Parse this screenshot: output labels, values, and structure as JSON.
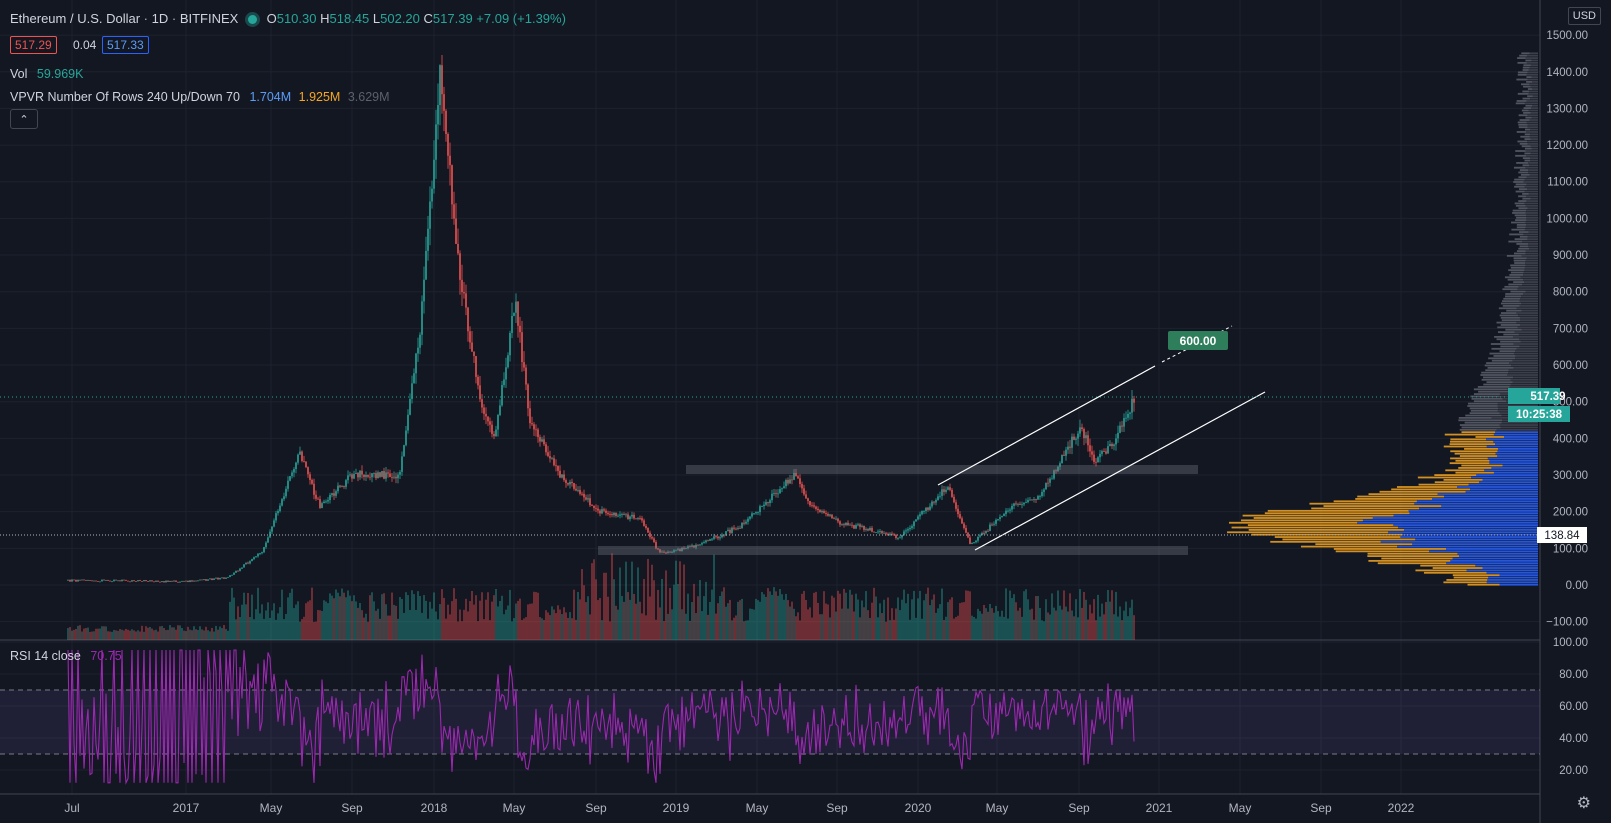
{
  "header": {
    "symbol": "Ethereum / U.S. Dollar",
    "interval": "1D",
    "exchange": "BITFINEX",
    "open_key": "O",
    "open": "510.30",
    "high_key": "H",
    "high": "518.45",
    "low_key": "L",
    "low": "502.20",
    "close_key": "C",
    "close": "517.39",
    "change": "+7.09 (+1.39%)",
    "bid": "517.29",
    "spread": "0.04",
    "ask": "517.33"
  },
  "indicators": {
    "vol_label": "Vol",
    "vol_value": "59.969K",
    "vpvr_label": "VPVR Number Of Rows 240 Up/Down 70",
    "vpvr_up": "1.704M",
    "vpvr_down": "1.925M",
    "vpvr_total": "3.629M",
    "rsi_label": "RSI 14 close",
    "rsi_value": "70.75"
  },
  "price_axis": {
    "currency": "USD",
    "ticks": [
      "1500.00",
      "1400.00",
      "1300.00",
      "1200.00",
      "1100.00",
      "1000.00",
      "900.00",
      "800.00",
      "700.00",
      "600.00",
      "500.00",
      "400.00",
      "300.00",
      "200.00",
      "100.00",
      "0.00",
      "−100.00"
    ],
    "last_price": "517.39",
    "countdown": "10:25:38",
    "crosshair_price": "138.84"
  },
  "rsi_axis": {
    "ticks": [
      "100.00",
      "80.00",
      "60.00",
      "40.00",
      "20.00"
    ],
    "upper_band": 70,
    "lower_band": 30
  },
  "time_axis": {
    "labels": [
      "Jul",
      "2017",
      "May",
      "Sep",
      "2018",
      "May",
      "Sep",
      "2019",
      "May",
      "Sep",
      "2020",
      "May",
      "Sep",
      "2021",
      "May",
      "Sep",
      "2022"
    ]
  },
  "annotations": {
    "target_label": "600.00"
  },
  "colors": {
    "background": "#131722",
    "up": "#26a69a",
    "down": "#ef5350",
    "rsi": "#9c27b0",
    "vpvr_up": "#2962ff",
    "vpvr_down": "#f5a623"
  },
  "chart_data": {
    "type": "line",
    "title": "Ethereum / U.S. Dollar · 1D · BITFINEX",
    "x": [
      "2016-07",
      "2016-10",
      "2017-01",
      "2017-03",
      "2017-05",
      "2017-06",
      "2017-07",
      "2017-09",
      "2017-11",
      "2017-12",
      "2018-01",
      "2018-02",
      "2018-03",
      "2018-04",
      "2018-05",
      "2018-06",
      "2018-08",
      "2018-09",
      "2018-11",
      "2018-12",
      "2019-02",
      "2019-04",
      "2019-06",
      "2019-07",
      "2019-09",
      "2019-12",
      "2020-02",
      "2020-03",
      "2020-05",
      "2020-07",
      "2020-08",
      "2020-09",
      "2020-10",
      "2020-11"
    ],
    "series": [
      {
        "name": "ETHUSD",
        "values": [
          12,
          12,
          9,
          20,
          90,
          360,
          210,
          300,
          300,
          700,
          1380,
          850,
          500,
          400,
          780,
          450,
          300,
          200,
          180,
          85,
          110,
          160,
          300,
          220,
          170,
          130,
          270,
          110,
          210,
          240,
          430,
          340,
          390,
          517
        ]
      }
    ],
    "ylim": [
      -100,
      1550
    ]
  }
}
